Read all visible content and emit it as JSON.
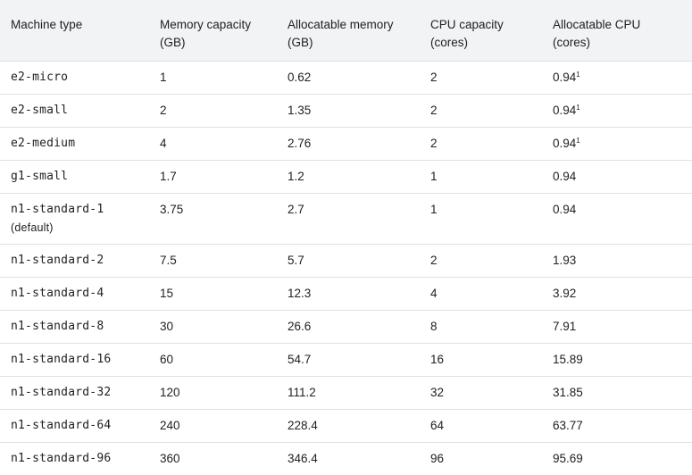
{
  "headers": [
    [
      "Machine type",
      ""
    ],
    [
      "Memory capacity",
      "(GB)"
    ],
    [
      "Allocatable memory",
      "(GB)"
    ],
    [
      "CPU capacity",
      "(cores)"
    ],
    [
      "Allocatable CPU",
      "(cores)"
    ]
  ],
  "rows": [
    {
      "type": "e2-micro",
      "note": "",
      "mem": "1",
      "alloc_mem": "0.62",
      "cpu": "2",
      "alloc_cpu": "0.94",
      "sup": "1"
    },
    {
      "type": "e2-small",
      "note": "",
      "mem": "2",
      "alloc_mem": "1.35",
      "cpu": "2",
      "alloc_cpu": "0.94",
      "sup": "1"
    },
    {
      "type": "e2-medium",
      "note": "",
      "mem": "4",
      "alloc_mem": "2.76",
      "cpu": "2",
      "alloc_cpu": "0.94",
      "sup": "1"
    },
    {
      "type": "g1-small",
      "note": "",
      "mem": "1.7",
      "alloc_mem": "1.2",
      "cpu": "1",
      "alloc_cpu": "0.94",
      "sup": ""
    },
    {
      "type": "n1-standard-1",
      "note": "(default)",
      "mem": "3.75",
      "alloc_mem": "2.7",
      "cpu": "1",
      "alloc_cpu": "0.94",
      "sup": ""
    },
    {
      "type": "n1-standard-2",
      "note": "",
      "mem": "7.5",
      "alloc_mem": "5.7",
      "cpu": "2",
      "alloc_cpu": "1.93",
      "sup": ""
    },
    {
      "type": "n1-standard-4",
      "note": "",
      "mem": "15",
      "alloc_mem": "12.3",
      "cpu": "4",
      "alloc_cpu": "3.92",
      "sup": ""
    },
    {
      "type": "n1-standard-8",
      "note": "",
      "mem": "30",
      "alloc_mem": "26.6",
      "cpu": "8",
      "alloc_cpu": "7.91",
      "sup": ""
    },
    {
      "type": "n1-standard-16",
      "note": "",
      "mem": "60",
      "alloc_mem": "54.7",
      "cpu": "16",
      "alloc_cpu": "15.89",
      "sup": ""
    },
    {
      "type": "n1-standard-32",
      "note": "",
      "mem": "120",
      "alloc_mem": "111.2",
      "cpu": "32",
      "alloc_cpu": "31.85",
      "sup": ""
    },
    {
      "type": "n1-standard-64",
      "note": "",
      "mem": "240",
      "alloc_mem": "228.4",
      "cpu": "64",
      "alloc_cpu": "63.77",
      "sup": ""
    },
    {
      "type": "n1-standard-96",
      "note": "",
      "mem": "360",
      "alloc_mem": "346.4",
      "cpu": "96",
      "alloc_cpu": "95.69",
      "sup": ""
    }
  ]
}
